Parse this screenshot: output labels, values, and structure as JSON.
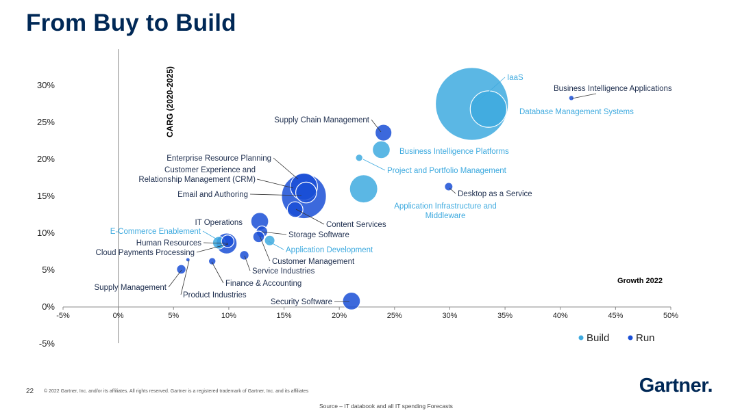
{
  "title": "From Buy to Build",
  "footer": {
    "page_number": "22",
    "copyright": "© 2022 Gartner, Inc. and/or its affiliates. All rights reserved. Gartner is a registered trademark of Gartner, Inc. and its affiliates",
    "source": "Source – IT databook and all IT spending Forecasts",
    "logo": "Gartner."
  },
  "colors": {
    "build": "#3eaadf",
    "run": "#1a4fd6",
    "axis": "#888888"
  },
  "chart_data": {
    "type": "scatter",
    "xlabel": "Growth 2022",
    "ylabel": "CARG (2020-2025)",
    "xlim": [
      -5,
      50
    ],
    "ylim": [
      -5,
      33
    ],
    "x_ticks": [
      "-5%",
      "0%",
      "5%",
      "10%",
      "15%",
      "20%",
      "25%",
      "30%",
      "35%",
      "40%",
      "45%",
      "50%"
    ],
    "y_ticks": [
      "-5%",
      "0%",
      "5%",
      "10%",
      "15%",
      "20%",
      "25%",
      "30%"
    ],
    "legend": [
      "Build",
      "Run"
    ],
    "points": [
      {
        "label": "IaaS",
        "series": "Build",
        "x": 32.0,
        "y": 27.5,
        "size": 70
      },
      {
        "label": "Database Management Systems",
        "series": "Build",
        "x": 33.5,
        "y": 26.8,
        "size": 35
      },
      {
        "label": "Business Intelligence Applications",
        "series": "Run",
        "x": 41.0,
        "y": 28.3,
        "size": 5
      },
      {
        "label": "Supply Chain Management",
        "series": "Run",
        "x": 24.0,
        "y": 23.6,
        "size": 16
      },
      {
        "label": "Business Intelligence Platforms",
        "series": "Build",
        "x": 23.8,
        "y": 21.3,
        "size": 17
      },
      {
        "label": "Project and Portfolio Management",
        "series": "Build",
        "x": 21.8,
        "y": 20.2,
        "size": 7
      },
      {
        "label": "Desktop as a Service",
        "series": "Run",
        "x": 29.9,
        "y": 16.3,
        "size": 8
      },
      {
        "label": "Application Infrastructure and Middleware",
        "series": "Build",
        "x": 22.2,
        "y": 16.0,
        "size": 27
      },
      {
        "label": "Enterprise Resource Planning",
        "series": "Run",
        "x": 16.8,
        "y": 15.0,
        "size": 43
      },
      {
        "label": "Customer Experience and Relationship Management (CRM)",
        "series": "Run",
        "x": 16.8,
        "y": 16.3,
        "size": 26
      },
      {
        "label": "Email and Authoring",
        "series": "Run",
        "x": 17.0,
        "y": 15.5,
        "size": 20
      },
      {
        "label": "Content Services",
        "series": "Run",
        "x": 16.0,
        "y": 13.2,
        "size": 15
      },
      {
        "label": "IT Operations",
        "series": "Run",
        "x": 12.8,
        "y": 11.6,
        "size": 17
      },
      {
        "label": "Storage Software",
        "series": "Run",
        "x": 13.0,
        "y": 10.2,
        "size": 11
      },
      {
        "label": "Application Development",
        "series": "Build",
        "x": 13.7,
        "y": 9.0,
        "size": 10
      },
      {
        "label": "Customer Management",
        "series": "Run",
        "x": 12.7,
        "y": 9.5,
        "size": 11
      },
      {
        "label": "E-Commerce Enablement",
        "series": "Build",
        "x": 9.1,
        "y": 8.7,
        "size": 12
      },
      {
        "label": "Human Resources",
        "series": "Run",
        "x": 9.8,
        "y": 8.6,
        "size": 20
      },
      {
        "label": "Cloud Payments Processing",
        "series": "Run",
        "x": 9.9,
        "y": 8.9,
        "size": 12
      },
      {
        "label": "Service Industries",
        "series": "Run",
        "x": 11.4,
        "y": 7.0,
        "size": 9
      },
      {
        "label": "Finance & Accounting",
        "series": "Run",
        "x": 8.5,
        "y": 6.2,
        "size": 7
      },
      {
        "label": "Supply Management",
        "series": "Run",
        "x": 5.7,
        "y": 5.1,
        "size": 9
      },
      {
        "label": "Product Industries",
        "series": "Run",
        "x": 6.3,
        "y": 6.4,
        "size": 4
      },
      {
        "label": "Security Software",
        "series": "Run",
        "x": 21.1,
        "y": 0.8,
        "size": 17
      }
    ]
  }
}
